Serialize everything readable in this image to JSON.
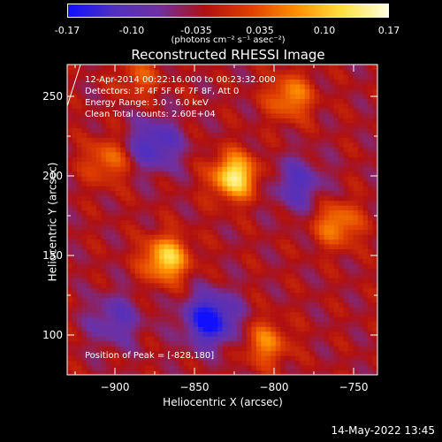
{
  "colorbar": {
    "ticks": [
      "-0.17",
      "-0.10",
      "-0.035",
      "0.035",
      "0.10",
      "0.17"
    ],
    "tick_values": [
      -0.17,
      -0.1,
      -0.035,
      0.035,
      0.1,
      0.17
    ],
    "unit": "(photons cm⁻² s⁻¹ asec⁻²)",
    "colors": [
      "#1010ff",
      "#5030c0",
      "#7030a0",
      "#b01010",
      "#e04000",
      "#ff9000",
      "#ffe040",
      "#ffffe0"
    ]
  },
  "header": {
    "title": "Reconstructed RHESSI Image"
  },
  "info": {
    "time_range": "12-Apr-2014 00:22:16.000 to 00:23:32.000",
    "detectors": "Detectors: 3F 4F 5F 6F 7F 8F, Att 0",
    "energy": "Energy Range: 3.0 - 6.0 keV",
    "clean": "Clean     Total counts: 2.60E+04",
    "peak": "Position of Peak = [-828,180]"
  },
  "footer": {
    "datestamp": "14-May-2022 13:45"
  },
  "chart_data": {
    "type": "heatmap",
    "title": "Reconstructed RHESSI Image",
    "xlabel": "Heliocentric X (arcsec)",
    "ylabel": "Heliocentric Y (arcsec)",
    "xlim": [
      -930,
      -735
    ],
    "ylim": [
      75,
      270
    ],
    "xticks": [
      -900,
      -850,
      -800,
      -750
    ],
    "xtick_labels": [
      "−900",
      "−850",
      "−800",
      "−750"
    ],
    "yticks": [
      100,
      150,
      200,
      250
    ],
    "ytick_labels": [
      "100",
      "150",
      "200",
      "250"
    ],
    "peak": [
      -828,
      180
    ],
    "color_range": [
      -0.17,
      0.17
    ],
    "sources": [
      {
        "x": -825,
        "y": 200,
        "value": 0.17
      },
      {
        "x": -868,
        "y": 148,
        "value": 0.15
      },
      {
        "x": -790,
        "y": 250,
        "value": 0.1
      },
      {
        "x": -905,
        "y": 210,
        "value": 0.08
      },
      {
        "x": -760,
        "y": 170,
        "value": 0.1
      },
      {
        "x": -805,
        "y": 95,
        "value": 0.09
      },
      {
        "x": -885,
        "y": 262,
        "value": 0.06
      }
    ],
    "minima": [
      {
        "x": -840,
        "y": 110,
        "value": -0.15
      },
      {
        "x": -875,
        "y": 220,
        "value": -0.1
      },
      {
        "x": -785,
        "y": 195,
        "value": -0.08
      },
      {
        "x": -900,
        "y": 110,
        "value": -0.07
      }
    ]
  }
}
